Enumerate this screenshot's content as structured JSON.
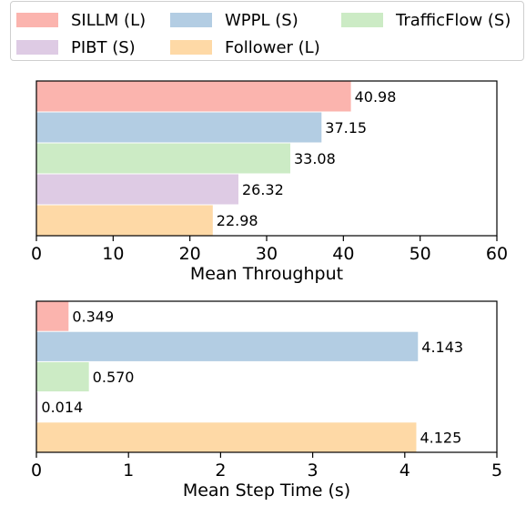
{
  "legend": {
    "entries": [
      {
        "label": "SILLM (L)",
        "color": "#fbb4ae"
      },
      {
        "label": "WPPL (S)",
        "color": "#b3cde3"
      },
      {
        "label": "TrafficFlow (S)",
        "color": "#ccebc5"
      },
      {
        "label": "PIBT (S)",
        "color": "#decbe4"
      },
      {
        "label": "Follower (L)",
        "color": "#fed9a6"
      }
    ]
  },
  "chart_data": [
    {
      "type": "bar",
      "orientation": "horizontal",
      "xlabel": "Mean Throughput",
      "xlim": [
        0,
        60
      ],
      "xticks": [
        "0",
        "10",
        "20",
        "30",
        "40",
        "50",
        "60"
      ],
      "categories": [
        "SILLM (L)",
        "WPPL (S)",
        "TrafficFlow (S)",
        "PIBT (S)",
        "Follower (L)"
      ],
      "values": [
        40.98,
        37.15,
        33.08,
        26.32,
        22.98
      ],
      "value_labels": [
        "40.98",
        "37.15",
        "33.08",
        "26.32",
        "22.98"
      ],
      "colors": [
        "#fbb4ae",
        "#b3cde3",
        "#ccebc5",
        "#decbe4",
        "#fed9a6"
      ]
    },
    {
      "type": "bar",
      "orientation": "horizontal",
      "xlabel": "Mean Step Time (s)",
      "xlim": [
        0,
        5
      ],
      "xticks": [
        "0",
        "1",
        "2",
        "3",
        "4",
        "5"
      ],
      "categories": [
        "SILLM (L)",
        "WPPL (S)",
        "TrafficFlow (S)",
        "PIBT (S)",
        "Follower (L)"
      ],
      "values": [
        0.349,
        4.143,
        0.57,
        0.014,
        4.125
      ],
      "value_labels": [
        "0.349",
        "4.143",
        "0.570",
        "0.014",
        "4.125"
      ],
      "colors": [
        "#fbb4ae",
        "#b3cde3",
        "#ccebc5",
        "#decbe4",
        "#fed9a6"
      ]
    }
  ]
}
